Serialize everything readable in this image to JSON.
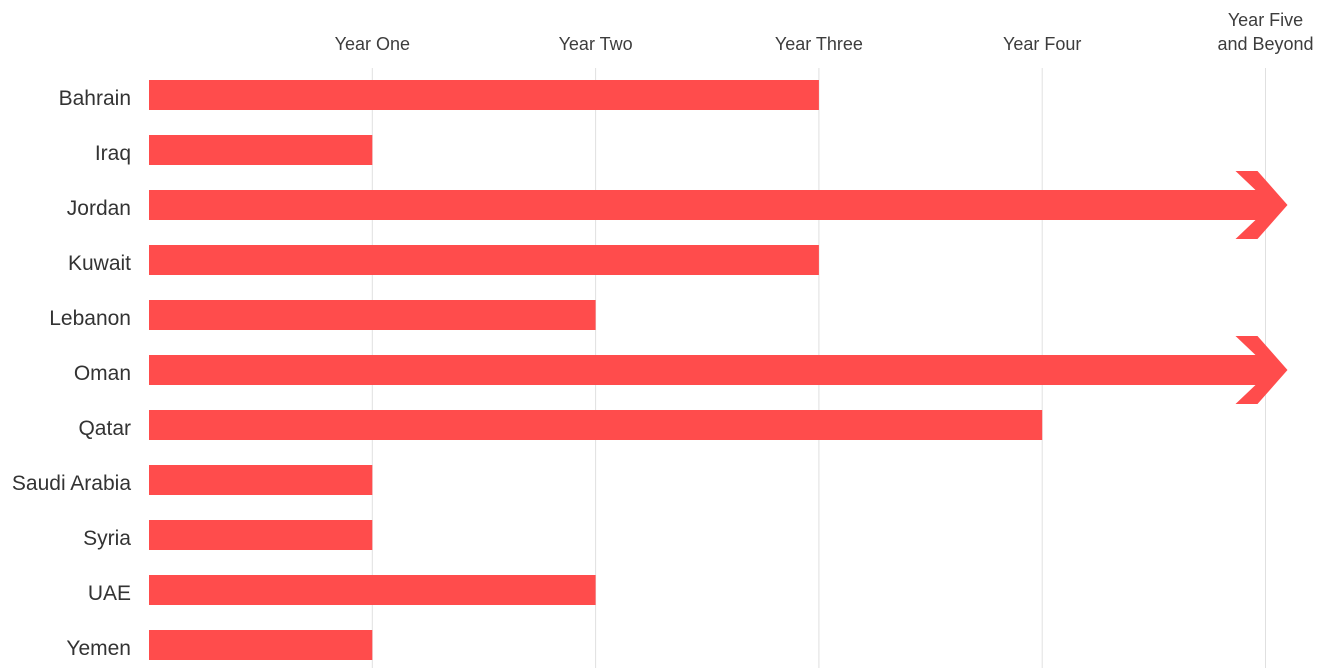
{
  "chart_data": {
    "type": "bar",
    "orientation": "horizontal",
    "x_ticks": [
      {
        "value": 1,
        "lines": [
          "Year One"
        ]
      },
      {
        "value": 2,
        "lines": [
          "Year Two"
        ]
      },
      {
        "value": 3,
        "lines": [
          "Year Three"
        ]
      },
      {
        "value": 4,
        "lines": [
          "Year Four"
        ]
      },
      {
        "value": 5,
        "lines": [
          "Year Five",
          "and Beyond"
        ]
      }
    ],
    "xlim": [
      0,
      5
    ],
    "x_axis_position": "top",
    "grid": "vertical",
    "categories": [
      "Bahrain",
      "Iraq",
      "Jordan",
      "Kuwait",
      "Lebanon",
      "Oman",
      "Qatar",
      "Saudi Arabia",
      "Syria",
      "UAE",
      "Yemen"
    ],
    "values": [
      3,
      1,
      5,
      3,
      2,
      5,
      4,
      1,
      1,
      2,
      1
    ],
    "continues_beyond": [
      false,
      false,
      true,
      false,
      false,
      true,
      false,
      false,
      false,
      false,
      false
    ],
    "colors": {
      "bar": "#ff4c4c",
      "grid": "#e0e0e0",
      "tick_text": "#3d3d3d",
      "category_text": "#333333"
    }
  }
}
